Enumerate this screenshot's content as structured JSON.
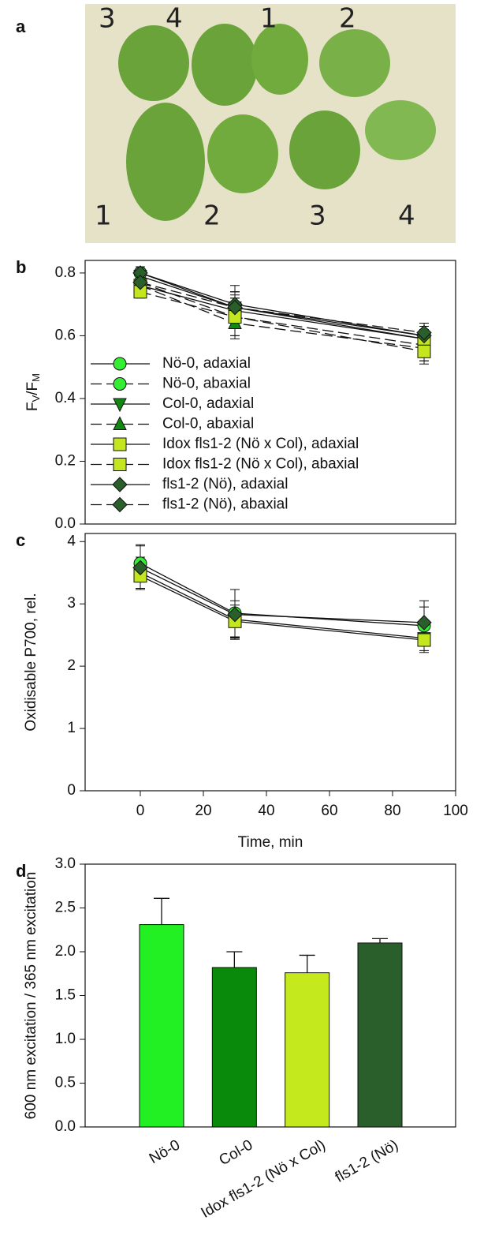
{
  "photo": {
    "panel_label": "a",
    "top_labels": [
      "3",
      "4",
      "1",
      "2"
    ],
    "bottom_labels": [
      "1",
      "2",
      "3",
      "4"
    ]
  },
  "chart_data": [
    {
      "type": "line",
      "panel_label": "b",
      "ylabel_parts": [
        "F",
        "V",
        "/F",
        "M"
      ],
      "x": [
        0,
        30,
        90
      ],
      "xlim": [
        -17.5,
        100
      ],
      "ylim": [
        0,
        0.84
      ],
      "yticks": [
        {
          "value": 0,
          "label": "0.0"
        },
        0.2,
        0.4,
        0.6,
        0.8
      ],
      "legend": "lower-left",
      "series": [
        {
          "name": "Nö-0, adaxial",
          "color": "#33ee33",
          "marker": "circle",
          "dash": false,
          "values": [
            0.8,
            0.69,
            0.6
          ],
          "errors": [
            0.02,
            0.05,
            0.03
          ]
        },
        {
          "name": "Nö-0, abaxial",
          "color": "#33ee33",
          "marker": "circle",
          "dash": true,
          "values": [
            0.77,
            0.66,
            0.57
          ],
          "errors": [
            0.02,
            0.06,
            0.05
          ]
        },
        {
          "name": "Col-0, adaxial",
          "color": "#118811",
          "marker": "triangle-down",
          "dash": false,
          "values": [
            0.79,
            0.69,
            0.59
          ],
          "errors": [
            0.02,
            0.05,
            0.03
          ]
        },
        {
          "name": "Col-0, abaxial",
          "color": "#118811",
          "marker": "triangle-up",
          "dash": true,
          "values": [
            0.76,
            0.64,
            0.56
          ],
          "errors": [
            0.02,
            0.05,
            0.04
          ]
        },
        {
          "name": "Idox fls1-2 (Nö x Col), adaxial",
          "color": "#c4e61e",
          "marker": "square",
          "dash": false,
          "values": [
            0.76,
            0.68,
            0.59
          ],
          "errors": [
            0.02,
            0.05,
            0.04
          ]
        },
        {
          "name": "Idox fls1-2 (Nö x Col), abaxial",
          "color": "#c4e61e",
          "marker": "square",
          "dash": true,
          "values": [
            0.74,
            0.66,
            0.55
          ],
          "errors": [
            0.02,
            0.06,
            0.04
          ]
        },
        {
          "name": "fls1-2 (Nö), adaxial",
          "color": "#2a5e2a",
          "marker": "diamond",
          "dash": false,
          "values": [
            0.8,
            0.7,
            0.6
          ],
          "errors": [
            0.02,
            0.06,
            0.03
          ]
        },
        {
          "name": "fls1-2 (Nö), abaxial",
          "color": "#2a5e2a",
          "marker": "diamond",
          "dash": true,
          "values": [
            0.77,
            0.69,
            0.61
          ],
          "errors": [
            0.02,
            0.05,
            0.03
          ]
        }
      ]
    },
    {
      "type": "line",
      "panel_label": "c",
      "ylabel": "Oxidisable P700, rel.",
      "xlabel": "Time, min",
      "x": [
        0,
        30,
        90
      ],
      "xlim": [
        -17.5,
        100
      ],
      "xticks": [
        0,
        20,
        40,
        60,
        80,
        100
      ],
      "ylim": [
        0,
        4.13
      ],
      "yticks": [
        0,
        1,
        2,
        3,
        4
      ],
      "series": [
        {
          "color": "#33ee33",
          "marker": "circle",
          "dash": false,
          "values": [
            3.65,
            2.85,
            2.65
          ],
          "errors": [
            0.3,
            0.38,
            0.3
          ]
        },
        {
          "color": "#118811",
          "marker": "triangle-down",
          "dash": false,
          "values": [
            3.5,
            2.75,
            2.45
          ],
          "errors": [
            0.25,
            0.3,
            0.2
          ]
        },
        {
          "color": "#c4e61e",
          "marker": "square",
          "dash": false,
          "values": [
            3.45,
            2.72,
            2.42
          ],
          "errors": [
            0.2,
            0.26,
            0.2
          ]
        },
        {
          "color": "#2a5e2a",
          "marker": "diamond",
          "dash": false,
          "values": [
            3.58,
            2.83,
            2.7
          ],
          "errors": [
            0.35,
            0.4,
            0.35
          ]
        }
      ]
    },
    {
      "type": "bar",
      "panel_label": "d",
      "ylabel": "600 nm excitation / 365 nm excitation",
      "categories": [
        "Nö-0",
        "Col-0",
        "Idox fls1-2 (Nö x Col)",
        "fls1-2 (Nö)"
      ],
      "values": [
        2.31,
        1.82,
        1.76,
        2.1
      ],
      "errors": [
        0.3,
        0.18,
        0.2,
        0.05
      ],
      "colors": [
        "#22f022",
        "#0a8a0a",
        "#c4ea1e",
        "#2a5e2a"
      ],
      "ylim": [
        0,
        3.0
      ],
      "yticks": [
        {
          "value": 0,
          "label": "0.0"
        },
        0.5,
        {
          "value": 1,
          "label": "1.0"
        },
        1.5,
        {
          "value": 2,
          "label": "2.0"
        },
        2.5,
        {
          "value": 3,
          "label": "3.0"
        }
      ]
    }
  ]
}
